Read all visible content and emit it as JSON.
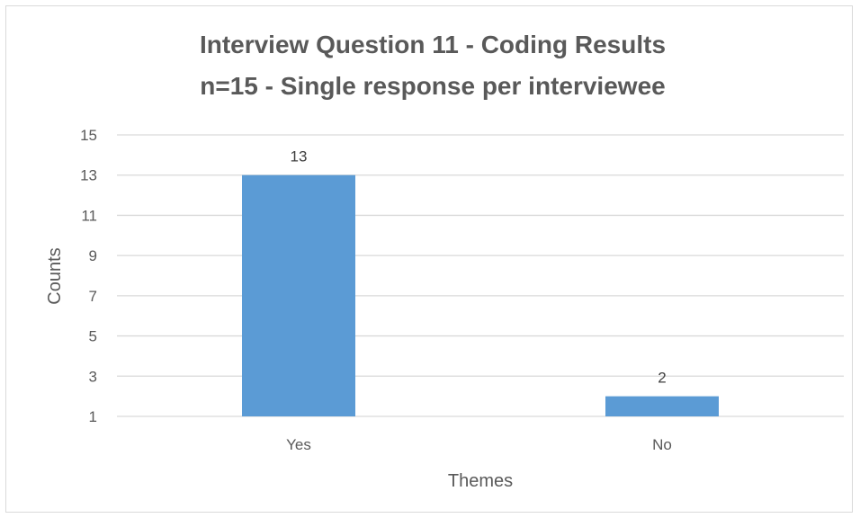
{
  "chart_data": {
    "type": "bar",
    "title": "Interview Question 11 - Coding Results",
    "subtitle": "n=15 - Single response per interviewee",
    "xlabel": "Themes",
    "ylabel": "Counts",
    "categories": [
      "Yes",
      "No"
    ],
    "values": [
      13,
      2
    ],
    "data_labels": [
      "13",
      "2"
    ],
    "ylim": [
      1,
      15
    ],
    "yticks": [
      "1",
      "3",
      "5",
      "7",
      "9",
      "11",
      "13",
      "15"
    ],
    "grid": true,
    "legend": "none",
    "bar_color": "#5b9bd5",
    "grid_color": "#d9d9d9",
    "text_color": "#595959"
  }
}
